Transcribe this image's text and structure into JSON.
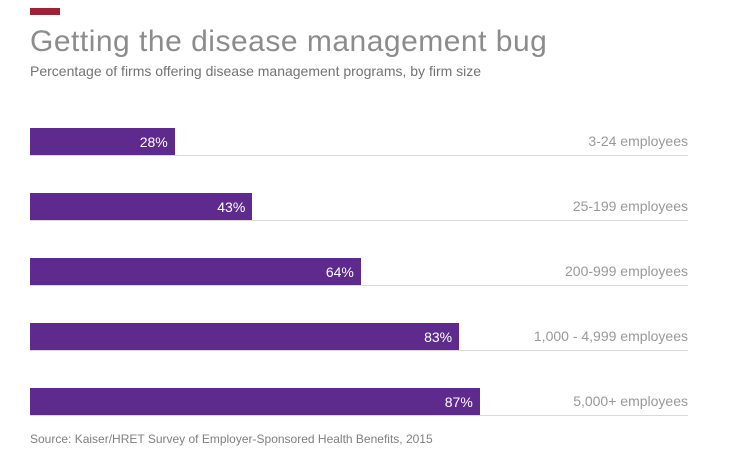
{
  "header": {
    "title": "Getting the disease management bug",
    "subtitle": "Percentage of firms offering disease management programs, by firm size"
  },
  "colors": {
    "accent": "#a31f34",
    "bar": "#5e2a8d",
    "bar_label": "#ffffff",
    "gridline": "#d9d9d9",
    "title_text": "#8c8c8c",
    "category_text": "#999999"
  },
  "chart_data": {
    "type": "bar",
    "orientation": "horizontal",
    "title": "Getting the disease management bug",
    "subtitle": "Percentage of firms offering disease management programs, by firm size",
    "categories": [
      "3-24 employees",
      "25-199 employees",
      "200-999 employees",
      "1,000 - 4,999 employees",
      "5,000+ employees"
    ],
    "values": [
      28,
      43,
      64,
      83,
      87
    ],
    "value_labels": [
      "28%",
      "43%",
      "64%",
      "83%",
      "87%"
    ],
    "xlabel": "",
    "ylabel": "",
    "xlim": [
      0,
      100
    ],
    "grid": "baseline-only",
    "legend": "none"
  },
  "footer": {
    "source": "Source: Kaiser/HRET Survey of Employer-Sponsored Health Benefits, 2015"
  }
}
